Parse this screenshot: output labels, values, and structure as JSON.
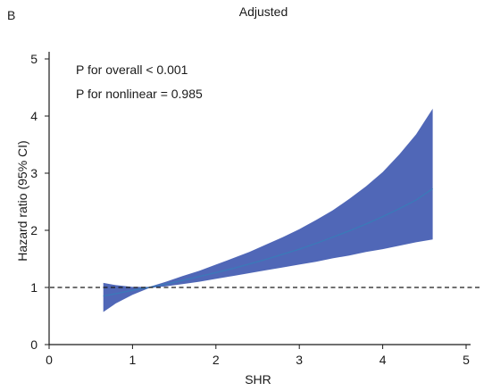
{
  "panel_label": "B",
  "chart_data": {
    "type": "line",
    "title": "Adjusted",
    "xlabel": "SHR",
    "ylabel": "Hazard ratio (95% CI)",
    "xlim": [
      0,
      5
    ],
    "ylim": [
      0,
      5
    ],
    "x_ticks": [
      0,
      1,
      2,
      3,
      4,
      5
    ],
    "y_ticks": [
      0,
      1,
      2,
      3,
      4,
      5
    ],
    "reference_line": {
      "y": 1,
      "style": "dashed"
    },
    "annotations": [
      "P for overall < 0.001",
      "P for nonlinear = 0.985"
    ],
    "colors": {
      "band": "#4a62b5",
      "line": "#3a7ab8",
      "axis": "#1a1a1a"
    },
    "series": [
      {
        "x": [
          0.65,
          0.8,
          1.0,
          1.2,
          1.4,
          1.6,
          1.8,
          2.0,
          2.2,
          2.4,
          2.6,
          2.8,
          3.0,
          3.2,
          3.4,
          3.6,
          3.8,
          4.0,
          4.2,
          4.4,
          4.6
        ],
        "y": [
          0.85,
          0.89,
          0.95,
          1.0,
          1.06,
          1.12,
          1.19,
          1.26,
          1.33,
          1.41,
          1.49,
          1.58,
          1.67,
          1.77,
          1.88,
          1.99,
          2.11,
          2.24,
          2.38,
          2.53,
          2.73
        ],
        "lower": [
          0.57,
          0.72,
          0.87,
          0.99,
          1.02,
          1.06,
          1.1,
          1.15,
          1.2,
          1.25,
          1.3,
          1.35,
          1.4,
          1.45,
          1.51,
          1.56,
          1.62,
          1.67,
          1.73,
          1.79,
          1.84
        ],
        "upper": [
          1.08,
          1.04,
          1.01,
          1.01,
          1.1,
          1.2,
          1.29,
          1.4,
          1.51,
          1.62,
          1.75,
          1.88,
          2.02,
          2.18,
          2.35,
          2.55,
          2.77,
          3.02,
          3.33,
          3.68,
          4.13
        ]
      }
    ]
  }
}
